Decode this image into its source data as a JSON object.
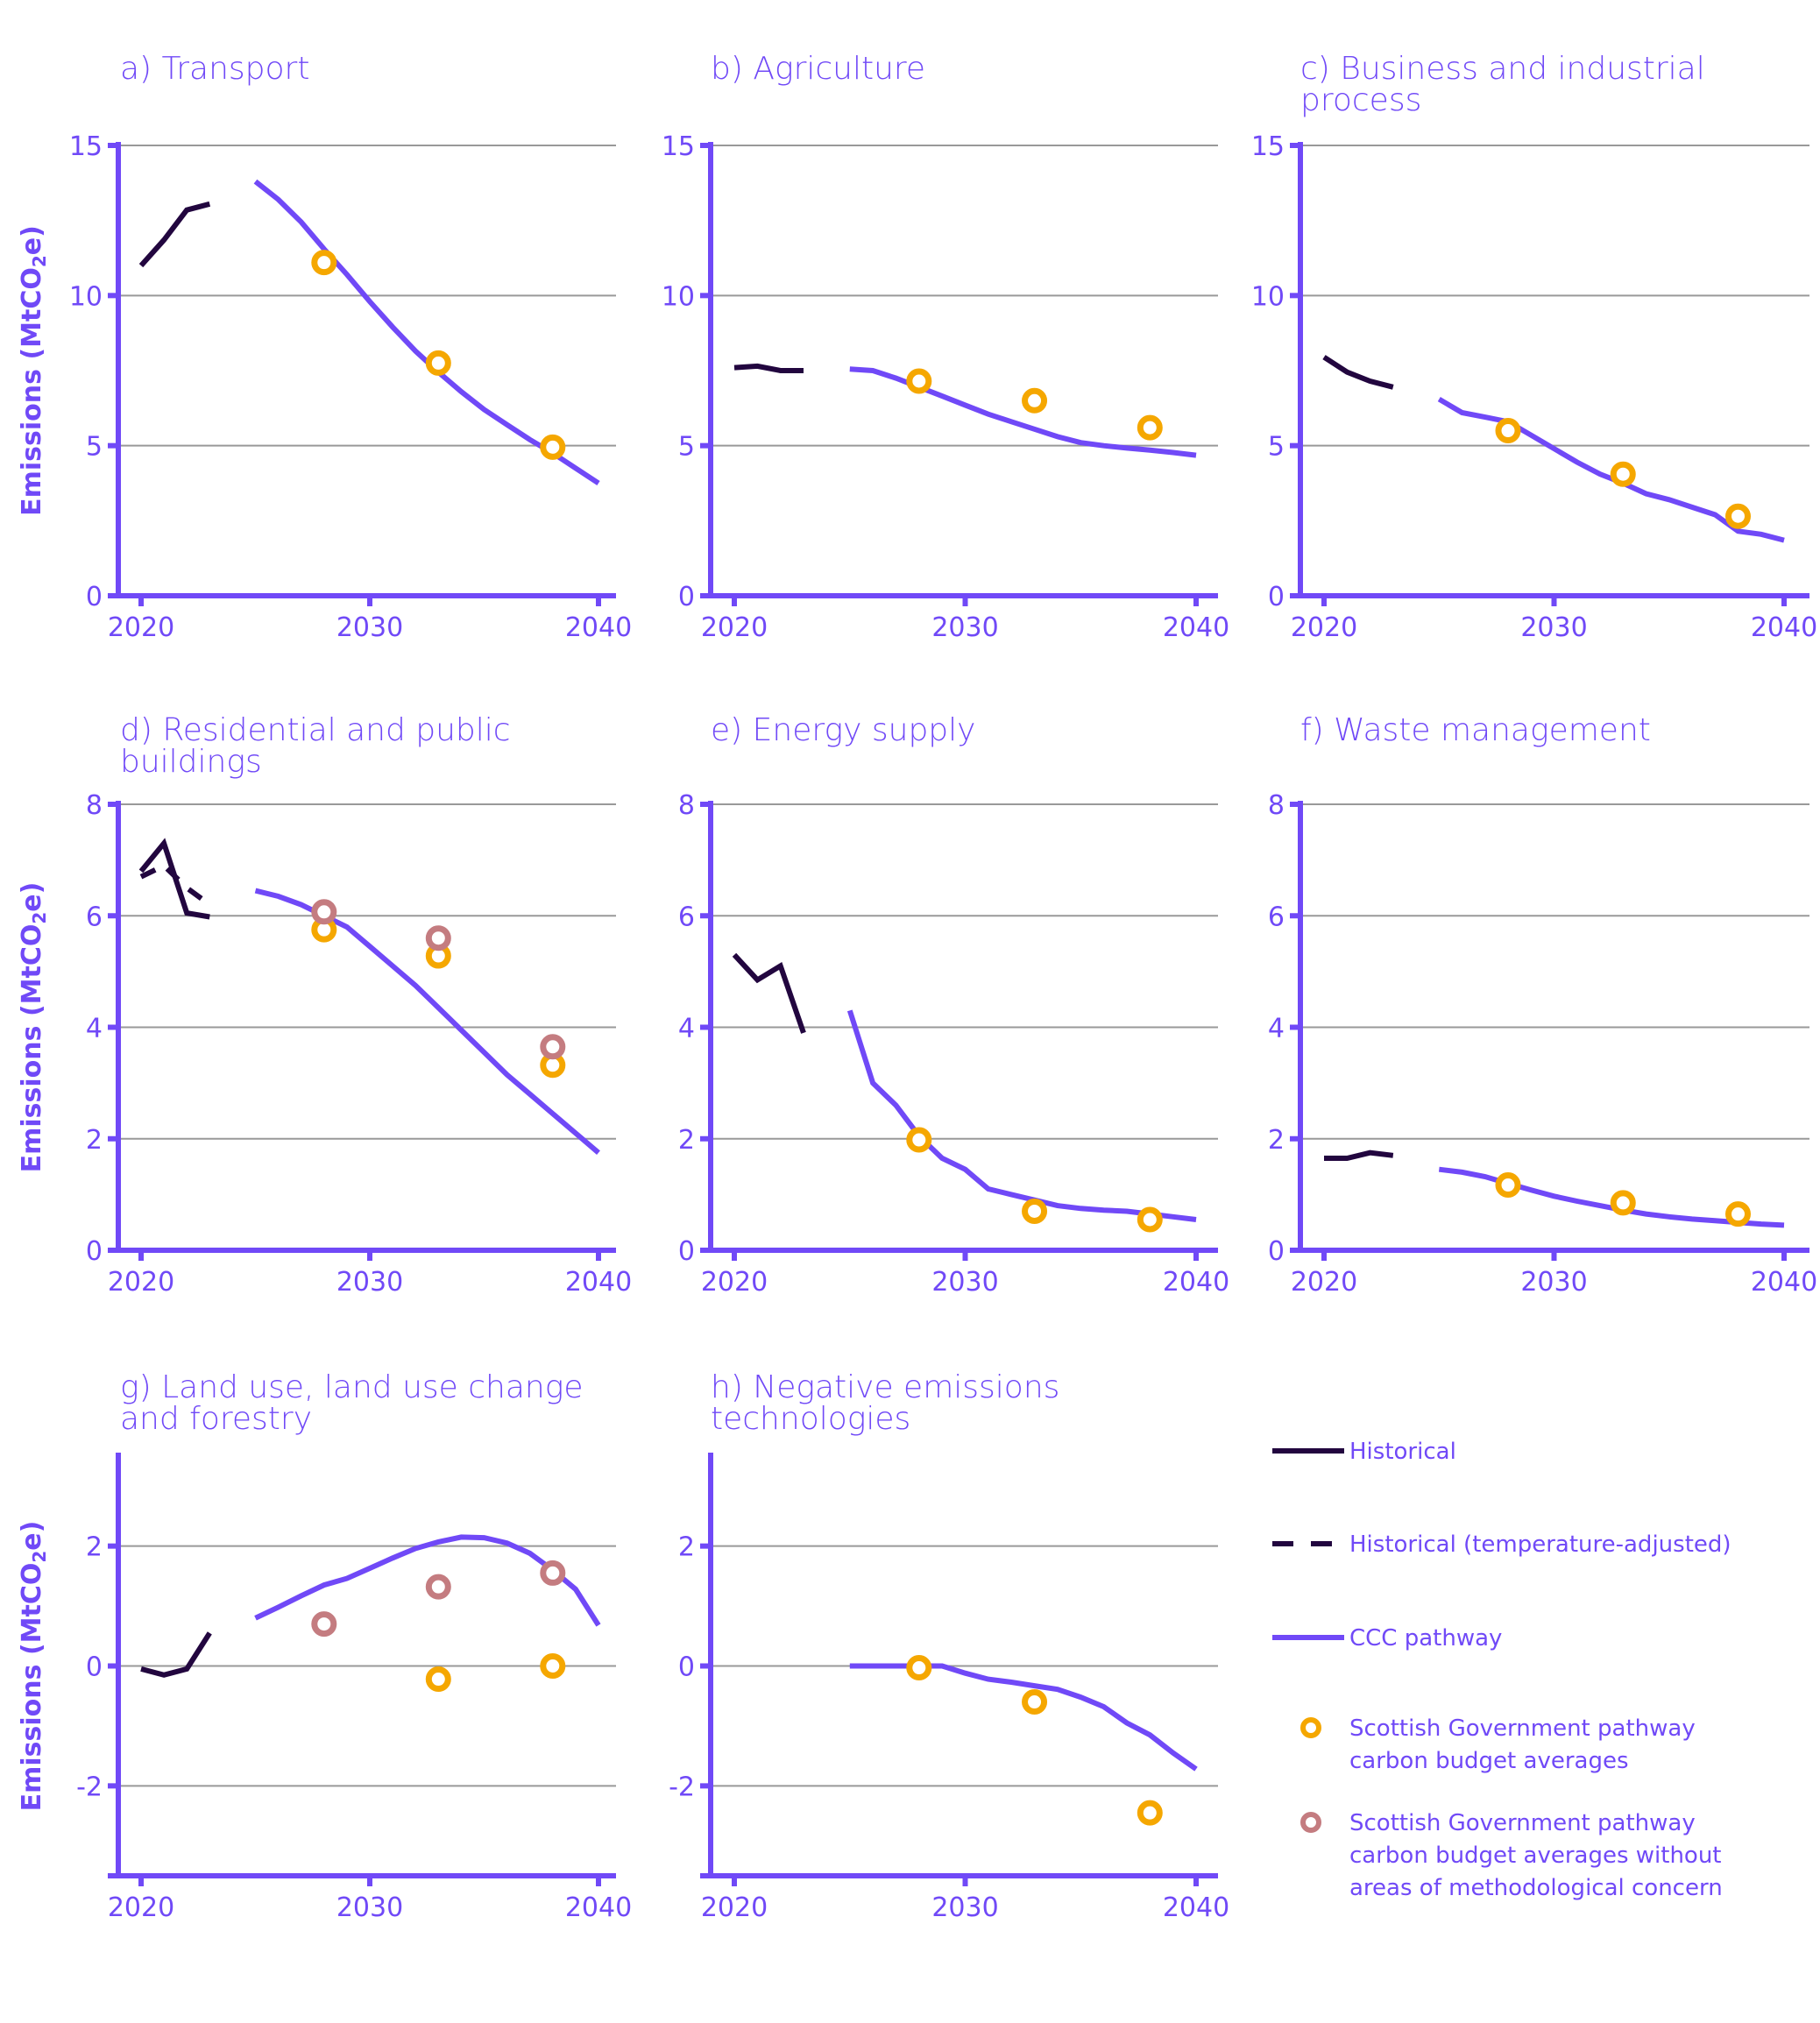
{
  "colors": {
    "historical": "#22063F",
    "ccc": "#7049F7",
    "sg": "#F5A700",
    "sg_without": "#C47C80",
    "axis": "#7049F7",
    "grid": "#999999",
    "text": "#7049F7"
  },
  "legend": {
    "items": [
      {
        "key": "historical",
        "label": "Historical",
        "kind": "solid-line"
      },
      {
        "key": "historical_adj",
        "label": "Historical (temperature-adjusted)",
        "kind": "dashed-line"
      },
      {
        "key": "ccc",
        "label": "CCC pathway",
        "kind": "solid-line"
      },
      {
        "key": "sg",
        "label": "Scottish Government pathway carbon budget averages",
        "lines": [
          "Scottish Government pathway",
          "carbon budget averages"
        ],
        "kind": "marker"
      },
      {
        "key": "sg_without",
        "label": "Scottish Government pathway carbon budget averages without areas of methodological concern",
        "lines": [
          "Scottish Government pathway",
          "carbon budget averages without",
          "areas of methodological concern"
        ],
        "kind": "marker"
      }
    ]
  },
  "chart_data": [
    {
      "type": "line",
      "id": "a",
      "title": [
        "a) Transport"
      ],
      "ylabel": "Emissions (MtCO2e)",
      "xlabel": "",
      "xlim": [
        2019,
        2041
      ],
      "ylim": [
        0,
        15
      ],
      "yticks": [
        0,
        5,
        10,
        15
      ],
      "xticks": [
        2020,
        2030,
        2040
      ],
      "grid": true,
      "series": [
        {
          "name": "Historical",
          "style": "solid",
          "x": [
            2020,
            2021,
            2022,
            2023
          ],
          "values": [
            11.0,
            11.85,
            12.85,
            13.05
          ]
        },
        {
          "name": "CCC pathway",
          "style": "solid",
          "x": [
            2025,
            2026,
            2027,
            2028,
            2029,
            2030,
            2031,
            2032,
            2033,
            2034,
            2035,
            2036,
            2037,
            2038,
            2039,
            2040
          ],
          "values": [
            13.8,
            13.2,
            12.45,
            11.55,
            10.7,
            9.8,
            8.95,
            8.15,
            7.45,
            6.8,
            6.2,
            5.7,
            5.2,
            4.75,
            4.25,
            3.75
          ]
        },
        {
          "name": "Scottish Government pathway carbon budget averages",
          "style": "marker",
          "x": [
            2028,
            2033,
            2038
          ],
          "values": [
            11.1,
            7.75,
            4.95
          ]
        }
      ]
    },
    {
      "type": "line",
      "id": "b",
      "title": [
        "b) Agriculture"
      ],
      "ylabel": "",
      "xlim": [
        2019,
        2041
      ],
      "ylim": [
        0,
        15
      ],
      "yticks": [
        0,
        5,
        10,
        15
      ],
      "xticks": [
        2020,
        2030,
        2040
      ],
      "grid": true,
      "series": [
        {
          "name": "Historical",
          "style": "solid",
          "x": [
            2020,
            2021,
            2022,
            2023
          ],
          "values": [
            7.6,
            7.65,
            7.5,
            7.5
          ]
        },
        {
          "name": "CCC pathway",
          "style": "solid",
          "x": [
            2025,
            2026,
            2027,
            2028,
            2029,
            2030,
            2031,
            2032,
            2033,
            2034,
            2035,
            2036,
            2037,
            2038,
            2039,
            2040
          ],
          "values": [
            7.55,
            7.5,
            7.25,
            6.95,
            6.65,
            6.35,
            6.05,
            5.8,
            5.55,
            5.3,
            5.1,
            5.0,
            4.92,
            4.85,
            4.77,
            4.68
          ]
        },
        {
          "name": "Scottish Government pathway carbon budget averages",
          "style": "marker",
          "x": [
            2028,
            2033,
            2038
          ],
          "values": [
            7.15,
            6.5,
            5.6
          ]
        }
      ]
    },
    {
      "type": "line",
      "id": "c",
      "title": [
        "c) Business and industrial",
        "process"
      ],
      "ylabel": "",
      "xlim": [
        2019,
        2041
      ],
      "ylim": [
        0,
        15
      ],
      "yticks": [
        0,
        5,
        10,
        15
      ],
      "xticks": [
        2020,
        2030,
        2040
      ],
      "grid": true,
      "series": [
        {
          "name": "Historical",
          "style": "solid",
          "x": [
            2020,
            2021,
            2022,
            2023
          ],
          "values": [
            7.95,
            7.45,
            7.15,
            6.95
          ]
        },
        {
          "name": "CCC pathway",
          "style": "solid",
          "x": [
            2025,
            2026,
            2027,
            2028,
            2029,
            2030,
            2031,
            2032,
            2033,
            2034,
            2035,
            2036,
            2037,
            2038,
            2039,
            2040
          ],
          "values": [
            6.55,
            6.1,
            5.95,
            5.8,
            5.35,
            4.9,
            4.45,
            4.05,
            3.75,
            3.4,
            3.2,
            2.95,
            2.7,
            2.15,
            2.05,
            1.85
          ]
        },
        {
          "name": "Scottish Government pathway carbon budget averages",
          "style": "marker",
          "x": [
            2028,
            2033,
            2038
          ],
          "values": [
            5.5,
            4.05,
            2.65
          ]
        }
      ]
    },
    {
      "type": "line",
      "id": "d",
      "title": [
        "d) Residential and public",
        "buildings"
      ],
      "ylabel": "Emissions (MtCO2e)",
      "xlim": [
        2019,
        2041
      ],
      "ylim": [
        0,
        8
      ],
      "yticks": [
        0,
        2,
        4,
        6,
        8
      ],
      "xticks": [
        2020,
        2030,
        2040
      ],
      "grid": true,
      "series": [
        {
          "name": "Historical",
          "style": "solid",
          "x": [
            2020,
            2021,
            2022,
            2023
          ],
          "values": [
            6.8,
            7.3,
            6.05,
            5.98
          ]
        },
        {
          "name": "Historical (temperature-adjusted)",
          "style": "dashed",
          "x": [
            2020,
            2021,
            2022,
            2023
          ],
          "values": [
            6.7,
            6.9,
            6.5,
            6.2
          ]
        },
        {
          "name": "CCC pathway",
          "style": "solid",
          "x": [
            2025,
            2026,
            2027,
            2028,
            2029,
            2030,
            2031,
            2032,
            2033,
            2034,
            2035,
            2036,
            2037,
            2038,
            2039,
            2040
          ],
          "values": [
            6.45,
            6.35,
            6.2,
            6.0,
            5.8,
            5.45,
            5.1,
            4.75,
            4.35,
            3.95,
            3.55,
            3.15,
            2.8,
            2.45,
            2.1,
            1.75
          ]
        },
        {
          "name": "Scottish Government pathway carbon budget averages",
          "style": "marker",
          "x": [
            2028,
            2033,
            2038
          ],
          "values": [
            5.75,
            5.28,
            3.32
          ]
        },
        {
          "name": "Scottish Government pathway carbon budget averages without areas of methodological concern",
          "style": "marker-alt",
          "x": [
            2028,
            2033,
            2038
          ],
          "values": [
            6.07,
            5.6,
            3.65
          ]
        }
      ]
    },
    {
      "type": "line",
      "id": "e",
      "title": [
        "e) Energy supply"
      ],
      "ylabel": "",
      "xlim": [
        2019,
        2041
      ],
      "ylim": [
        0,
        8
      ],
      "yticks": [
        0,
        2,
        4,
        6,
        8
      ],
      "xticks": [
        2020,
        2030,
        2040
      ],
      "grid": true,
      "series": [
        {
          "name": "Historical",
          "style": "solid",
          "x": [
            2020,
            2021,
            2022,
            2023
          ],
          "values": [
            5.3,
            4.85,
            5.1,
            3.9
          ]
        },
        {
          "name": "CCC pathway",
          "style": "solid",
          "x": [
            2025,
            2026,
            2027,
            2028,
            2029,
            2030,
            2031,
            2032,
            2033,
            2034,
            2035,
            2036,
            2037,
            2038,
            2039,
            2040
          ],
          "values": [
            4.3,
            3.0,
            2.6,
            2.05,
            1.65,
            1.45,
            1.1,
            1.0,
            0.9,
            0.8,
            0.75,
            0.72,
            0.7,
            0.65,
            0.6,
            0.55
          ]
        },
        {
          "name": "Scottish Government pathway carbon budget averages",
          "style": "marker",
          "x": [
            2028,
            2033,
            2038
          ],
          "values": [
            1.98,
            0.7,
            0.55
          ]
        }
      ]
    },
    {
      "type": "line",
      "id": "f",
      "title": [
        "f) Waste management"
      ],
      "ylabel": "",
      "xlim": [
        2019,
        2041
      ],
      "ylim": [
        0,
        8
      ],
      "yticks": [
        0,
        2,
        4,
        6,
        8
      ],
      "xticks": [
        2020,
        2030,
        2040
      ],
      "grid": true,
      "series": [
        {
          "name": "Historical",
          "style": "solid",
          "x": [
            2020,
            2021,
            2022,
            2023
          ],
          "values": [
            1.65,
            1.65,
            1.75,
            1.7
          ]
        },
        {
          "name": "CCC pathway",
          "style": "solid",
          "x": [
            2025,
            2026,
            2027,
            2028,
            2029,
            2030,
            2031,
            2032,
            2033,
            2034,
            2035,
            2036,
            2037,
            2038,
            2039,
            2040
          ],
          "values": [
            1.45,
            1.4,
            1.32,
            1.2,
            1.08,
            0.97,
            0.88,
            0.8,
            0.72,
            0.65,
            0.6,
            0.56,
            0.53,
            0.5,
            0.47,
            0.45
          ]
        },
        {
          "name": "Scottish Government pathway carbon budget averages",
          "style": "marker",
          "x": [
            2028,
            2033,
            2038
          ],
          "values": [
            1.17,
            0.85,
            0.65
          ]
        }
      ]
    },
    {
      "type": "line",
      "id": "g",
      "title": [
        "g) Land use, land use change",
        "and forestry"
      ],
      "ylabel": "Emissions (MtCO2e)",
      "xlim": [
        2019,
        2041
      ],
      "ylim": [
        -3.5,
        3.5
      ],
      "yticks": [
        -2,
        0,
        2
      ],
      "xticks": [
        2020,
        2030,
        2040
      ],
      "grid": true,
      "series": [
        {
          "name": "Historical",
          "style": "solid",
          "x": [
            2020,
            2021,
            2022,
            2023
          ],
          "values": [
            -0.05,
            -0.15,
            -0.05,
            0.55
          ]
        },
        {
          "name": "CCC pathway",
          "style": "solid",
          "x": [
            2025,
            2026,
            2027,
            2028,
            2029,
            2030,
            2031,
            2032,
            2033,
            2034,
            2035,
            2036,
            2037,
            2038,
            2039,
            2040
          ],
          "values": [
            0.8,
            0.98,
            1.17,
            1.35,
            1.46,
            1.63,
            1.8,
            1.96,
            2.07,
            2.15,
            2.14,
            2.05,
            1.88,
            1.6,
            1.28,
            0.68
          ]
        },
        {
          "name": "Scottish Government pathway carbon budget averages",
          "style": "marker",
          "x": [
            2033,
            2038
          ],
          "values": [
            -0.22,
            0.0
          ]
        },
        {
          "name": "Scottish Government pathway carbon budget averages without areas of methodological concern",
          "style": "marker-alt",
          "x": [
            2028,
            2033,
            2038
          ],
          "values": [
            0.7,
            1.32,
            1.55
          ]
        }
      ]
    },
    {
      "type": "line",
      "id": "h",
      "title": [
        "h) Negative emissions",
        "technologies"
      ],
      "ylabel": "",
      "xlim": [
        2019,
        2041
      ],
      "ylim": [
        -3.5,
        3.5
      ],
      "yticks": [
        -2,
        0,
        2
      ],
      "xticks": [
        2020,
        2030,
        2040
      ],
      "grid": true,
      "series": [
        {
          "name": "CCC pathway",
          "style": "solid",
          "x": [
            2025,
            2026,
            2027,
            2028,
            2029,
            2030,
            2031,
            2032,
            2033,
            2034,
            2035,
            2036,
            2037,
            2038,
            2039,
            2040
          ],
          "values": [
            0,
            0,
            0,
            0,
            0,
            -0.12,
            -0.22,
            -0.27,
            -0.33,
            -0.39,
            -0.52,
            -0.68,
            -0.95,
            -1.15,
            -1.45,
            -1.72
          ]
        },
        {
          "name": "Scottish Government pathway carbon budget averages",
          "style": "marker",
          "x": [
            2028,
            2033,
            2038
          ],
          "values": [
            -0.03,
            -0.6,
            -2.45
          ]
        }
      ]
    }
  ]
}
